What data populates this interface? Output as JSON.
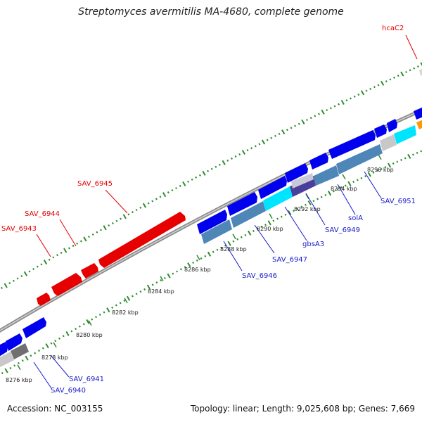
{
  "title": "Streptomyces avermitilis MA-4680, complete genome",
  "footer": {
    "accession": "Accession: NC_003155",
    "summary": "Topology: linear; Length: 9,025,608 bp; Genes: 7,669"
  },
  "tick_labels": [
    "8276 kbp",
    "8278 kbp",
    "8280 kbp",
    "8282 kbp",
    "8284 kbp",
    "8286 kbp",
    "8288 kbp",
    "8290 kbp",
    "8292 kbp",
    "8294 kbp",
    "8296 kbp"
  ],
  "gene_labels": {
    "red": [
      "hcaC2",
      "SAV_6945",
      "SAV_6944",
      "SAV_6943"
    ],
    "blue": [
      "SAV_6951",
      "solA",
      "SAV_6949",
      "gbsA3",
      "SAV_6947",
      "SAV_6946",
      "SAV_6941",
      "SAV_6940"
    ]
  },
  "colors": {
    "forward_gene": "#e60000",
    "reverse_gene": "#0000ee",
    "steelblue_gene": "#4f86b8",
    "cyan_gene": "#00e5ff",
    "grey_gene": "#c0c0c0",
    "darkgrey_gene": "#6f6f6f",
    "purple_gene": "#4a3f9a",
    "orange_gene": "#ff9900",
    "backbone": "#9a9a9a",
    "dots": "#2e8b2e"
  }
}
